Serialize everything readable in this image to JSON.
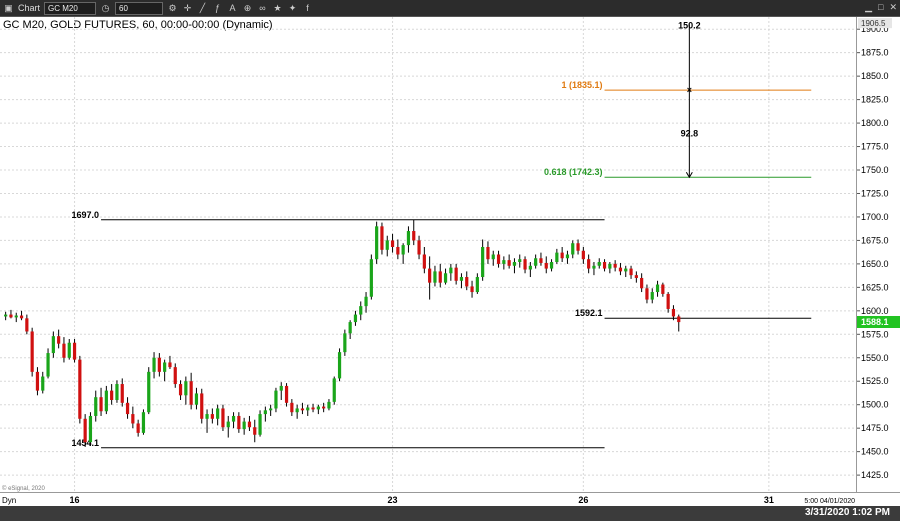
{
  "window": {
    "app_label": "Chart",
    "symbol_field": "GC M20",
    "interval_field": "60",
    "status_datetime": "3/31/2020 1:02 PM"
  },
  "header": {
    "title": "GC M20, GOLD FUTURES, 60, 00:00-00:00 (Dynamic)"
  },
  "axis": {
    "copyright": "© eSignal, 2020",
    "dyn_label": "Dyn",
    "last_time_label": "5:00 04/01/2020"
  },
  "chart_data": {
    "type": "candlestick",
    "title": "GC M20, GOLD FUTURES, 60, 00:00-00:00 (Dynamic)",
    "y_ticks": [
      1425,
      1450,
      1475,
      1500,
      1525,
      1550,
      1575,
      1600,
      1625,
      1650,
      1675,
      1700,
      1725,
      1750,
      1775,
      1800,
      1825,
      1850,
      1875,
      1900
    ],
    "y_tick_labels": [
      "1425.0",
      "1450.0",
      "1475.0",
      "1500.0",
      "1525.0",
      "1550.0",
      "1575.0",
      "1600.0",
      "1625.0",
      "1650.0",
      "1675.0",
      "1700.0",
      "1725.0",
      "1750.0",
      "1775.0",
      "1800.0",
      "1825.0",
      "1850.0",
      "1875.0",
      "1900.0"
    ],
    "ylim": [
      1407,
      1913
    ],
    "x_ticks": [
      {
        "label": "16",
        "bar": 13
      },
      {
        "label": "23",
        "bar": 73
      },
      {
        "label": "26",
        "bar": 109
      },
      {
        "label": "31",
        "bar": 144
      }
    ],
    "bar_count": 152,
    "highlighted_price_label": "1906.5",
    "last_price": 1588.1,
    "last_price_label": "1588.1",
    "levels": [
      {
        "label": "1697.0",
        "price": 1697.0,
        "from_bar": 18,
        "to_bar": 113,
        "color": "#000000"
      },
      {
        "label": "1454.1",
        "price": 1454.1,
        "from_bar": 18,
        "to_bar": 113,
        "color": "#000000"
      },
      {
        "label": "1592.1",
        "price": 1592.1,
        "from_bar": 113,
        "to_bar": 152,
        "color": "#000000"
      },
      {
        "label": "1 (1835.1)",
        "price": 1835.1,
        "from_bar": 113,
        "to_bar": 152,
        "color": "#e07a10"
      },
      {
        "label": "0.618 (1742.3)",
        "price": 1742.3,
        "from_bar": 113,
        "to_bar": 152,
        "color": "#2a9a2a"
      }
    ],
    "measure": {
      "bar": 129,
      "top_price": 1905.0,
      "mid_price": 1835.1,
      "bottom_price": 1742.3,
      "top_label": "150.2",
      "mid_label": "92.8"
    },
    "candles": [
      [
        1594,
        1599,
        1590,
        1596
      ],
      [
        1596,
        1601,
        1592,
        1593
      ],
      [
        1593,
        1598,
        1588,
        1595
      ],
      [
        1595,
        1600,
        1590,
        1592
      ],
      [
        1592,
        1596,
        1575,
        1578
      ],
      [
        1578,
        1582,
        1530,
        1535
      ],
      [
        1535,
        1540,
        1510,
        1515
      ],
      [
        1515,
        1535,
        1512,
        1530
      ],
      [
        1530,
        1560,
        1528,
        1555
      ],
      [
        1555,
        1578,
        1550,
        1573
      ],
      [
        1573,
        1580,
        1560,
        1565
      ],
      [
        1565,
        1572,
        1545,
        1550
      ],
      [
        1550,
        1570,
        1548,
        1566
      ],
      [
        1566,
        1570,
        1545,
        1548
      ],
      [
        1548,
        1552,
        1480,
        1485
      ],
      [
        1485,
        1490,
        1455,
        1460
      ],
      [
        1460,
        1492,
        1456,
        1488
      ],
      [
        1488,
        1515,
        1482,
        1508
      ],
      [
        1508,
        1518,
        1488,
        1493
      ],
      [
        1493,
        1520,
        1490,
        1515
      ],
      [
        1515,
        1522,
        1500,
        1505
      ],
      [
        1505,
        1526,
        1502,
        1522
      ],
      [
        1522,
        1528,
        1498,
        1502
      ],
      [
        1502,
        1508,
        1485,
        1490
      ],
      [
        1490,
        1498,
        1475,
        1480
      ],
      [
        1480,
        1484,
        1466,
        1470
      ],
      [
        1470,
        1495,
        1468,
        1492
      ],
      [
        1492,
        1540,
        1490,
        1535
      ],
      [
        1535,
        1556,
        1528,
        1550
      ],
      [
        1550,
        1555,
        1530,
        1535
      ],
      [
        1535,
        1548,
        1525,
        1545
      ],
      [
        1545,
        1552,
        1538,
        1540
      ],
      [
        1540,
        1544,
        1518,
        1522
      ],
      [
        1522,
        1526,
        1505,
        1510
      ],
      [
        1510,
        1530,
        1500,
        1525
      ],
      [
        1525,
        1534,
        1495,
        1500
      ],
      [
        1500,
        1518,
        1495,
        1512
      ],
      [
        1512,
        1517,
        1480,
        1485
      ],
      [
        1485,
        1495,
        1470,
        1490
      ],
      [
        1490,
        1496,
        1480,
        1485
      ],
      [
        1485,
        1500,
        1478,
        1496
      ],
      [
        1496,
        1500,
        1472,
        1476
      ],
      [
        1476,
        1488,
        1465,
        1482
      ],
      [
        1482,
        1492,
        1475,
        1488
      ],
      [
        1488,
        1492,
        1470,
        1474
      ],
      [
        1474,
        1486,
        1468,
        1482
      ],
      [
        1482,
        1488,
        1472,
        1476
      ],
      [
        1476,
        1484,
        1460,
        1468
      ],
      [
        1468,
        1494,
        1466,
        1490
      ],
      [
        1490,
        1498,
        1482,
        1494
      ],
      [
        1494,
        1500,
        1488,
        1496
      ],
      [
        1496,
        1518,
        1492,
        1515
      ],
      [
        1515,
        1524,
        1505,
        1520
      ],
      [
        1520,
        1523,
        1498,
        1502
      ],
      [
        1502,
        1506,
        1488,
        1492
      ],
      [
        1492,
        1500,
        1485,
        1496
      ],
      [
        1496,
        1502,
        1490,
        1494
      ],
      [
        1494,
        1500,
        1488,
        1497
      ],
      [
        1497,
        1501,
        1492,
        1495
      ],
      [
        1495,
        1500,
        1490,
        1498
      ],
      [
        1498,
        1502,
        1492,
        1496
      ],
      [
        1496,
        1506,
        1494,
        1503
      ],
      [
        1503,
        1530,
        1500,
        1528
      ],
      [
        1528,
        1560,
        1525,
        1556
      ],
      [
        1556,
        1580,
        1552,
        1576
      ],
      [
        1576,
        1590,
        1570,
        1588
      ],
      [
        1588,
        1600,
        1584,
        1596
      ],
      [
        1596,
        1610,
        1590,
        1605
      ],
      [
        1605,
        1620,
        1598,
        1615
      ],
      [
        1615,
        1660,
        1612,
        1655
      ],
      [
        1655,
        1695,
        1650,
        1690
      ],
      [
        1690,
        1694,
        1660,
        1665
      ],
      [
        1665,
        1680,
        1658,
        1675
      ],
      [
        1675,
        1682,
        1662,
        1668
      ],
      [
        1668,
        1676,
        1655,
        1660
      ],
      [
        1660,
        1672,
        1650,
        1670
      ],
      [
        1670,
        1690,
        1662,
        1685
      ],
      [
        1685,
        1697,
        1670,
        1675
      ],
      [
        1675,
        1680,
        1655,
        1660
      ],
      [
        1660,
        1668,
        1640,
        1645
      ],
      [
        1645,
        1658,
        1612,
        1630
      ],
      [
        1630,
        1648,
        1626,
        1642
      ],
      [
        1642,
        1650,
        1625,
        1630
      ],
      [
        1630,
        1645,
        1628,
        1640
      ],
      [
        1640,
        1650,
        1632,
        1646
      ],
      [
        1646,
        1650,
        1628,
        1632
      ],
      [
        1632,
        1640,
        1624,
        1636
      ],
      [
        1636,
        1642,
        1622,
        1626
      ],
      [
        1626,
        1632,
        1614,
        1620
      ],
      [
        1620,
        1640,
        1618,
        1636
      ],
      [
        1636,
        1676,
        1632,
        1668
      ],
      [
        1668,
        1674,
        1650,
        1655
      ],
      [
        1655,
        1664,
        1648,
        1660
      ],
      [
        1660,
        1664,
        1646,
        1650
      ],
      [
        1650,
        1658,
        1644,
        1654
      ],
      [
        1654,
        1660,
        1645,
        1648
      ],
      [
        1648,
        1656,
        1640,
        1652
      ],
      [
        1652,
        1660,
        1646,
        1655
      ],
      [
        1655,
        1658,
        1640,
        1644
      ],
      [
        1644,
        1652,
        1636,
        1648
      ],
      [
        1648,
        1660,
        1645,
        1656
      ],
      [
        1656,
        1662,
        1648,
        1651
      ],
      [
        1651,
        1658,
        1640,
        1645
      ],
      [
        1645,
        1655,
        1642,
        1652
      ],
      [
        1652,
        1666,
        1650,
        1662
      ],
      [
        1662,
        1668,
        1652,
        1656
      ],
      [
        1656,
        1664,
        1650,
        1660
      ],
      [
        1660,
        1675,
        1656,
        1672
      ],
      [
        1672,
        1676,
        1660,
        1664
      ],
      [
        1664,
        1668,
        1650,
        1655
      ],
      [
        1655,
        1660,
        1640,
        1645
      ],
      [
        1645,
        1652,
        1638,
        1648
      ],
      [
        1648,
        1656,
        1645,
        1652
      ],
      [
        1652,
        1655,
        1642,
        1645
      ],
      [
        1645,
        1652,
        1640,
        1650
      ],
      [
        1650,
        1654,
        1642,
        1646
      ],
      [
        1646,
        1651,
        1638,
        1642
      ],
      [
        1642,
        1648,
        1636,
        1645
      ],
      [
        1645,
        1648,
        1634,
        1638
      ],
      [
        1638,
        1642,
        1630,
        1635
      ],
      [
        1635,
        1640,
        1620,
        1624
      ],
      [
        1624,
        1628,
        1608,
        1612
      ],
      [
        1612,
        1624,
        1608,
        1620
      ],
      [
        1620,
        1632,
        1615,
        1628
      ],
      [
        1628,
        1630,
        1615,
        1618
      ],
      [
        1618,
        1620,
        1598,
        1602
      ],
      [
        1602,
        1606,
        1590,
        1594
      ],
      [
        1594,
        1596,
        1578,
        1588
      ]
    ]
  }
}
